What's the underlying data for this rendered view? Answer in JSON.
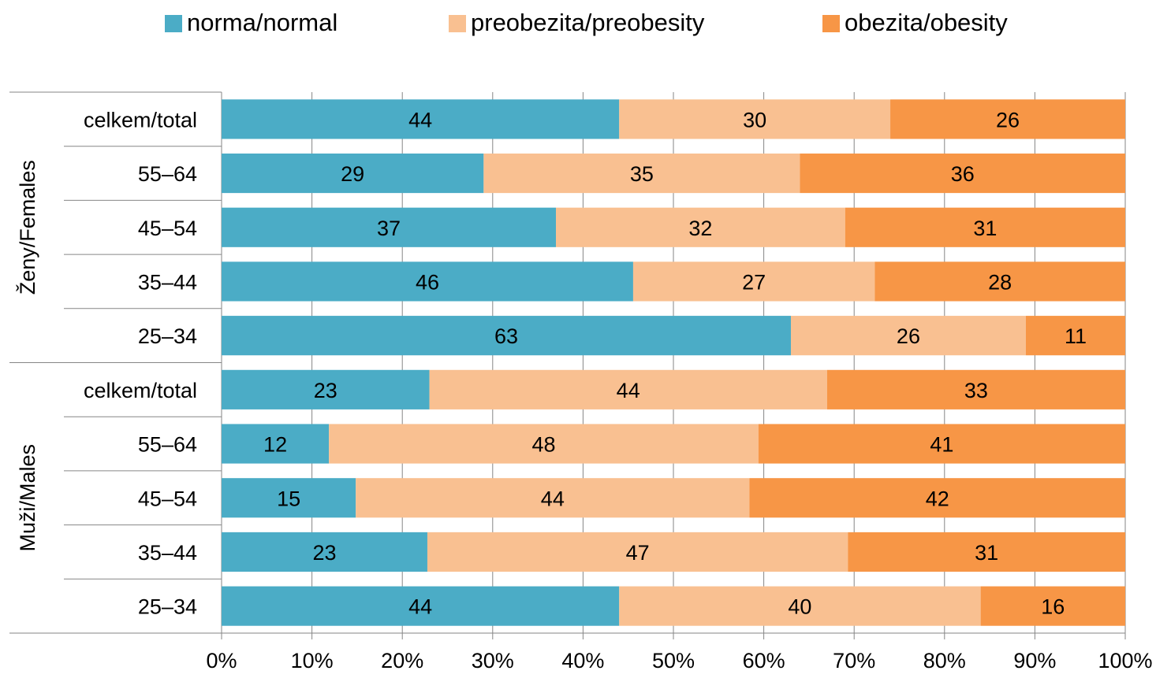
{
  "legend": {
    "items": [
      {
        "label": "norma/normal",
        "color": "#4BACC6"
      },
      {
        "label": "preobezita/preobesity",
        "color": "#F9C091"
      },
      {
        "label": "obezita/obesity",
        "color": "#F79646"
      }
    ]
  },
  "chart_data": {
    "type": "bar",
    "orientation": "horizontal",
    "stacked": "percent",
    "legend_position": "top",
    "grid": true,
    "xlim": [
      0,
      100
    ],
    "x_ticks": [
      "0%",
      "10%",
      "20%",
      "30%",
      "40%",
      "50%",
      "60%",
      "70%",
      "80%",
      "90%",
      "100%"
    ],
    "groups": [
      {
        "name": "Ženy/Females",
        "categories": [
          "celkem/total",
          "55–64",
          "45–54",
          "35–44",
          "25–34"
        ]
      },
      {
        "name": "Muži/Males",
        "categories": [
          "celkem/total",
          "55–64",
          "45–54",
          "35–44",
          "25–34"
        ]
      }
    ],
    "series": [
      {
        "name": "norma/normal",
        "color": "#4BACC6",
        "values": [
          44,
          29,
          37,
          46,
          63,
          23,
          12,
          15,
          23,
          44
        ]
      },
      {
        "name": "preobezita/preobesity",
        "color": "#F9C091",
        "values": [
          30,
          35,
          32,
          27,
          26,
          44,
          48,
          44,
          47,
          40
        ]
      },
      {
        "name": "obezita/obesity",
        "color": "#F79646",
        "values": [
          26,
          36,
          31,
          28,
          11,
          33,
          41,
          42,
          31,
          16
        ]
      }
    ]
  }
}
